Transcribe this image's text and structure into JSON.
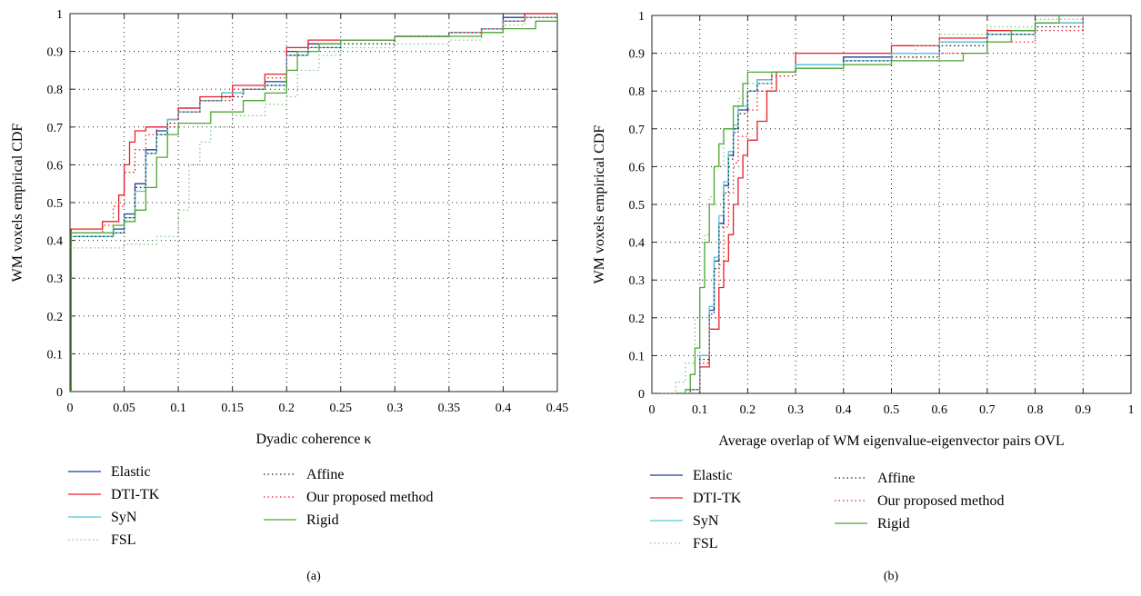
{
  "charts": [
    {
      "type": "line",
      "step": true,
      "panel_label": "(a)",
      "xlabel": "Dyadic coherence κ",
      "ylabel": "WM voxels empirical CDF",
      "xlim": [
        0,
        0.45
      ],
      "ylim": [
        0,
        1
      ],
      "xticks": [
        0,
        0.05,
        0.1,
        0.15,
        0.2,
        0.25,
        0.3,
        0.35,
        0.4,
        0.45
      ],
      "xtick_labels": [
        "0",
        "0.05",
        "0.1",
        "0.15",
        "0.2",
        "0.25",
        "0.3",
        "0.35",
        "0.4",
        "0.45"
      ],
      "yticks": [
        0,
        0.1,
        0.2,
        0.3,
        0.4,
        0.5,
        0.6,
        0.7,
        0.8,
        0.9,
        1
      ],
      "ytick_labels": [
        "0",
        "0.1",
        "0.2",
        "0.3",
        "0.4",
        "0.5",
        "0.6",
        "0.7",
        "0.8",
        "0.9",
        "1"
      ],
      "grid": true,
      "legend_position": "below",
      "series": [
        {
          "name": "Elastic",
          "x": [
            0,
            0.001,
            0.04,
            0.05,
            0.06,
            0.07,
            0.08,
            0.09,
            0.1,
            0.12,
            0.14,
            0.16,
            0.18,
            0.2,
            0.22,
            0.25,
            0.3,
            0.35,
            0.38,
            0.4,
            0.42,
            0.45
          ],
          "y": [
            0,
            0.41,
            0.43,
            0.47,
            0.55,
            0.64,
            0.69,
            0.72,
            0.75,
            0.77,
            0.79,
            0.8,
            0.82,
            0.9,
            0.92,
            0.93,
            0.94,
            0.95,
            0.96,
            0.99,
            1.0,
            1.0
          ]
        },
        {
          "name": "DTI-TK",
          "x": [
            0,
            0.001,
            0.03,
            0.045,
            0.05,
            0.055,
            0.06,
            0.07,
            0.09,
            0.1,
            0.12,
            0.15,
            0.18,
            0.2,
            0.22,
            0.25,
            0.3,
            0.35,
            0.38,
            0.4,
            0.42,
            0.45
          ],
          "y": [
            0,
            0.43,
            0.45,
            0.52,
            0.6,
            0.66,
            0.69,
            0.7,
            0.72,
            0.75,
            0.78,
            0.81,
            0.84,
            0.91,
            0.93,
            0.93,
            0.94,
            0.95,
            0.96,
            0.98,
            1.0,
            1.0
          ]
        },
        {
          "name": "SyN",
          "x": [
            0,
            0.001,
            0.04,
            0.05,
            0.06,
            0.07,
            0.08,
            0.09,
            0.1,
            0.12,
            0.14,
            0.16,
            0.18,
            0.2,
            0.22,
            0.25,
            0.3,
            0.35,
            0.38,
            0.4,
            0.42,
            0.45
          ],
          "y": [
            0,
            0.41,
            0.42,
            0.46,
            0.53,
            0.63,
            0.68,
            0.72,
            0.74,
            0.77,
            0.79,
            0.8,
            0.81,
            0.89,
            0.91,
            0.93,
            0.94,
            0.95,
            0.96,
            0.98,
            0.99,
            1.0
          ]
        },
        {
          "name": "FSL",
          "x": [
            0,
            0.001,
            0.05,
            0.08,
            0.1,
            0.11,
            0.12,
            0.13,
            0.15,
            0.18,
            0.2,
            0.21,
            0.23,
            0.25,
            0.3,
            0.35,
            0.38,
            0.4,
            0.42,
            0.45
          ],
          "y": [
            0,
            0.38,
            0.39,
            0.41,
            0.48,
            0.6,
            0.66,
            0.7,
            0.73,
            0.76,
            0.78,
            0.85,
            0.89,
            0.91,
            0.92,
            0.93,
            0.95,
            0.97,
            0.99,
            1.0
          ]
        },
        {
          "name": "Affine",
          "x": [
            0,
            0.001,
            0.04,
            0.05,
            0.06,
            0.07,
            0.08,
            0.09,
            0.1,
            0.12,
            0.14,
            0.16,
            0.18,
            0.2,
            0.22,
            0.25,
            0.3,
            0.35,
            0.38,
            0.4,
            0.42,
            0.45
          ],
          "y": [
            0,
            0.41,
            0.42,
            0.46,
            0.54,
            0.63,
            0.68,
            0.71,
            0.74,
            0.77,
            0.78,
            0.8,
            0.81,
            0.89,
            0.91,
            0.92,
            0.94,
            0.95,
            0.96,
            0.98,
            0.99,
            1.0
          ]
        },
        {
          "name": "Our proposed method",
          "x": [
            0,
            0.001,
            0.03,
            0.04,
            0.05,
            0.06,
            0.07,
            0.08,
            0.1,
            0.12,
            0.15,
            0.18,
            0.2,
            0.22,
            0.25,
            0.3,
            0.35,
            0.38,
            0.4,
            0.42,
            0.45
          ],
          "y": [
            0,
            0.42,
            0.44,
            0.49,
            0.58,
            0.64,
            0.68,
            0.7,
            0.74,
            0.77,
            0.8,
            0.83,
            0.9,
            0.92,
            0.93,
            0.94,
            0.95,
            0.96,
            0.98,
            0.99,
            1.0
          ]
        },
        {
          "name": "Rigid",
          "x": [
            0,
            0.001,
            0.04,
            0.05,
            0.06,
            0.07,
            0.08,
            0.09,
            0.1,
            0.13,
            0.16,
            0.18,
            0.2,
            0.21,
            0.23,
            0.25,
            0.3,
            0.35,
            0.38,
            0.4,
            0.43,
            0.45
          ],
          "y": [
            0,
            0.42,
            0.44,
            0.45,
            0.48,
            0.54,
            0.62,
            0.68,
            0.71,
            0.74,
            0.77,
            0.79,
            0.85,
            0.9,
            0.92,
            0.93,
            0.94,
            0.94,
            0.95,
            0.96,
            0.98,
            1.0
          ]
        }
      ]
    },
    {
      "type": "line",
      "step": true,
      "panel_label": "(b)",
      "xlabel": "Average overlap of WM eigenvalue-eigenvector pairs OVL",
      "ylabel": "WM voxels empirical CDF",
      "xlim": [
        0,
        1
      ],
      "ylim": [
        0,
        1
      ],
      "xticks": [
        0,
        0.1,
        0.2,
        0.3,
        0.4,
        0.5,
        0.6,
        0.7,
        0.8,
        0.9,
        1
      ],
      "xtick_labels": [
        "0",
        "0.1",
        "0.2",
        "0.3",
        "0.4",
        "0.5",
        "0.6",
        "0.7",
        "0.8",
        "0.9",
        "1"
      ],
      "yticks": [
        0,
        0.1,
        0.2,
        0.3,
        0.4,
        0.5,
        0.6,
        0.7,
        0.8,
        0.9,
        1
      ],
      "ytick_labels": [
        "0",
        "0.1",
        "0.2",
        "0.3",
        "0.4",
        "0.5",
        "0.6",
        "0.7",
        "0.8",
        "0.9",
        "1"
      ],
      "grid": true,
      "legend_position": "below",
      "series": [
        {
          "name": "Elastic",
          "x": [
            0.05,
            0.08,
            0.1,
            0.12,
            0.13,
            0.14,
            0.15,
            0.16,
            0.17,
            0.18,
            0.2,
            0.22,
            0.25,
            0.3,
            0.4,
            0.5,
            0.6,
            0.7,
            0.8,
            0.9
          ],
          "y": [
            0,
            0.01,
            0.1,
            0.22,
            0.35,
            0.45,
            0.55,
            0.63,
            0.7,
            0.75,
            0.8,
            0.83,
            0.85,
            0.87,
            0.89,
            0.9,
            0.93,
            0.96,
            0.98,
            1.0
          ]
        },
        {
          "name": "DTI-TK",
          "x": [
            0.05,
            0.08,
            0.1,
            0.12,
            0.14,
            0.15,
            0.16,
            0.17,
            0.18,
            0.19,
            0.2,
            0.22,
            0.24,
            0.26,
            0.3,
            0.4,
            0.5,
            0.6,
            0.7,
            0.8,
            0.9
          ],
          "y": [
            0,
            0.01,
            0.07,
            0.17,
            0.28,
            0.35,
            0.42,
            0.5,
            0.57,
            0.63,
            0.67,
            0.72,
            0.8,
            0.85,
            0.9,
            0.9,
            0.92,
            0.94,
            0.96,
            0.98,
            1.0
          ]
        },
        {
          "name": "SyN",
          "x": [
            0.05,
            0.08,
            0.1,
            0.12,
            0.13,
            0.14,
            0.15,
            0.16,
            0.17,
            0.18,
            0.2,
            0.22,
            0.25,
            0.3,
            0.4,
            0.5,
            0.6,
            0.7,
            0.8,
            0.9
          ],
          "y": [
            0,
            0.01,
            0.1,
            0.23,
            0.36,
            0.47,
            0.56,
            0.64,
            0.71,
            0.76,
            0.8,
            0.83,
            0.85,
            0.87,
            0.88,
            0.9,
            0.93,
            0.95,
            0.98,
            1.0
          ]
        },
        {
          "name": "FSL",
          "x": [
            0.02,
            0.05,
            0.07,
            0.09,
            0.1,
            0.11,
            0.12,
            0.13,
            0.15,
            0.18,
            0.2,
            0.25,
            0.3,
            0.4,
            0.5,
            0.55,
            0.6,
            0.7,
            0.8,
            0.9
          ],
          "y": [
            0,
            0.03,
            0.08,
            0.2,
            0.3,
            0.42,
            0.52,
            0.6,
            0.7,
            0.78,
            0.82,
            0.85,
            0.86,
            0.87,
            0.88,
            0.92,
            0.95,
            0.97,
            0.99,
            1.0
          ]
        },
        {
          "name": "Affine",
          "x": [
            0.05,
            0.08,
            0.1,
            0.12,
            0.13,
            0.14,
            0.15,
            0.16,
            0.17,
            0.18,
            0.2,
            0.22,
            0.25,
            0.3,
            0.4,
            0.5,
            0.6,
            0.7,
            0.8,
            0.9
          ],
          "y": [
            0,
            0.01,
            0.09,
            0.21,
            0.33,
            0.44,
            0.53,
            0.62,
            0.69,
            0.74,
            0.8,
            0.82,
            0.84,
            0.86,
            0.88,
            0.89,
            0.92,
            0.95,
            0.97,
            1.0
          ]
        },
        {
          "name": "Our proposed method",
          "x": [
            0.05,
            0.08,
            0.1,
            0.12,
            0.14,
            0.15,
            0.16,
            0.17,
            0.18,
            0.2,
            0.22,
            0.25,
            0.3,
            0.4,
            0.5,
            0.6,
            0.7,
            0.8,
            0.9
          ],
          "y": [
            0,
            0.01,
            0.08,
            0.2,
            0.34,
            0.44,
            0.53,
            0.61,
            0.68,
            0.75,
            0.8,
            0.84,
            0.86,
            0.87,
            0.88,
            0.9,
            0.93,
            0.96,
            1.0
          ]
        },
        {
          "name": "Rigid",
          "x": [
            0.05,
            0.07,
            0.08,
            0.09,
            0.1,
            0.11,
            0.12,
            0.13,
            0.14,
            0.15,
            0.17,
            0.19,
            0.2,
            0.25,
            0.3,
            0.4,
            0.5,
            0.6,
            0.65,
            0.7,
            0.75,
            0.8,
            0.85
          ],
          "y": [
            0,
            0.01,
            0.05,
            0.12,
            0.28,
            0.4,
            0.5,
            0.6,
            0.66,
            0.7,
            0.76,
            0.82,
            0.85,
            0.85,
            0.86,
            0.87,
            0.88,
            0.88,
            0.9,
            0.93,
            0.96,
            0.98,
            1.0
          ]
        }
      ]
    }
  ],
  "legend": {
    "items": [
      {
        "name": "Elastic",
        "color": "#1f3f9a",
        "dash": "solid"
      },
      {
        "name": "DTI-TK",
        "color": "#e8202a",
        "dash": "solid"
      },
      {
        "name": "SyN",
        "color": "#55c8d8",
        "dash": "solid"
      },
      {
        "name": "FSL",
        "color": "#7fc97f",
        "dash": "dotted"
      },
      {
        "name": "Affine",
        "color": "#231f20",
        "dash": "dotted"
      },
      {
        "name": "Our proposed method",
        "color": "#e8202a",
        "dash": "dotted"
      },
      {
        "name": "Rigid",
        "color": "#4aa832",
        "dash": "solid"
      }
    ]
  },
  "colors": {
    "Elastic": "#1f3f9a",
    "DTI-TK": "#e8202a",
    "SyN": "#55c8d8",
    "FSL": "#7fc97f",
    "Affine": "#231f20",
    "Our proposed method": "#e8202a",
    "Rigid": "#4aa832",
    "grid": "#231f20",
    "axes": "#231f20"
  }
}
